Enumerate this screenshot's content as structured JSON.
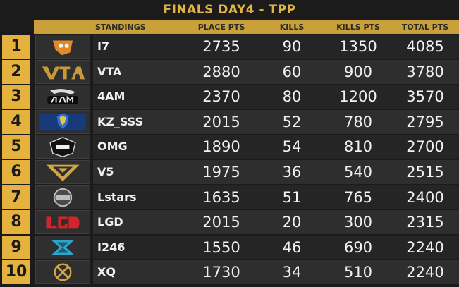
{
  "title": "FINALS DAY4 - TPP",
  "headers": {
    "standings": "STANDINGS",
    "place_pts": "PLACE PTS",
    "kills": "KILLS",
    "kills_pts": "KILLS PTS",
    "total_pts": "TOTAL PTS"
  },
  "rows": [
    {
      "rank": "1",
      "team": "I7",
      "place_pts": "2735",
      "kills": "90",
      "kills_pts": "1350",
      "total_pts": "4085",
      "logo_icon": "i7-tiger-logo-icon",
      "logo_color": "#e08a2c"
    },
    {
      "rank": "2",
      "team": "VTA",
      "place_pts": "2880",
      "kills": "60",
      "kills_pts": "900",
      "total_pts": "3780",
      "logo_icon": "vta-logo-icon",
      "logo_color": "#c99a3a"
    },
    {
      "rank": "3",
      "team": "4AM",
      "place_pts": "2370",
      "kills": "80",
      "kills_pts": "1200",
      "total_pts": "3570",
      "logo_icon": "4am-logo-icon",
      "logo_color": "#e8e8e8"
    },
    {
      "rank": "4",
      "team": "KZ_SSS",
      "place_pts": "2015",
      "kills": "52",
      "kills_pts": "780",
      "total_pts": "2795",
      "logo_icon": "kingzone-logo-icon",
      "logo_color": "#2f6fd6"
    },
    {
      "rank": "5",
      "team": "OMG",
      "place_pts": "1890",
      "kills": "54",
      "kills_pts": "810",
      "total_pts": "2700",
      "logo_icon": "omg-logo-icon",
      "logo_color": "#d8d8d8"
    },
    {
      "rank": "6",
      "team": "V5",
      "place_pts": "1975",
      "kills": "36",
      "kills_pts": "540",
      "total_pts": "2515",
      "logo_icon": "v5-logo-icon",
      "logo_color": "#d4a545"
    },
    {
      "rank": "7",
      "team": "Lstars",
      "place_pts": "1635",
      "kills": "51",
      "kills_pts": "765",
      "total_pts": "2400",
      "logo_icon": "lstars-logo-icon",
      "logo_color": "#bdbdbd"
    },
    {
      "rank": "8",
      "team": "LGD",
      "place_pts": "2015",
      "kills": "20",
      "kills_pts": "300",
      "total_pts": "2315",
      "logo_icon": "lgd-logo-icon",
      "logo_color": "#d4242b"
    },
    {
      "rank": "9",
      "team": "I246",
      "place_pts": "1550",
      "kills": "46",
      "kills_pts": "690",
      "total_pts": "2240",
      "logo_icon": "i246-logo-icon",
      "logo_color": "#2fa3c8"
    },
    {
      "rank": "10",
      "team": "XQ",
      "place_pts": "1730",
      "kills": "34",
      "kills_pts": "510",
      "total_pts": "2240",
      "logo_icon": "xq-logo-icon",
      "logo_color": "#d4a545"
    }
  ]
}
